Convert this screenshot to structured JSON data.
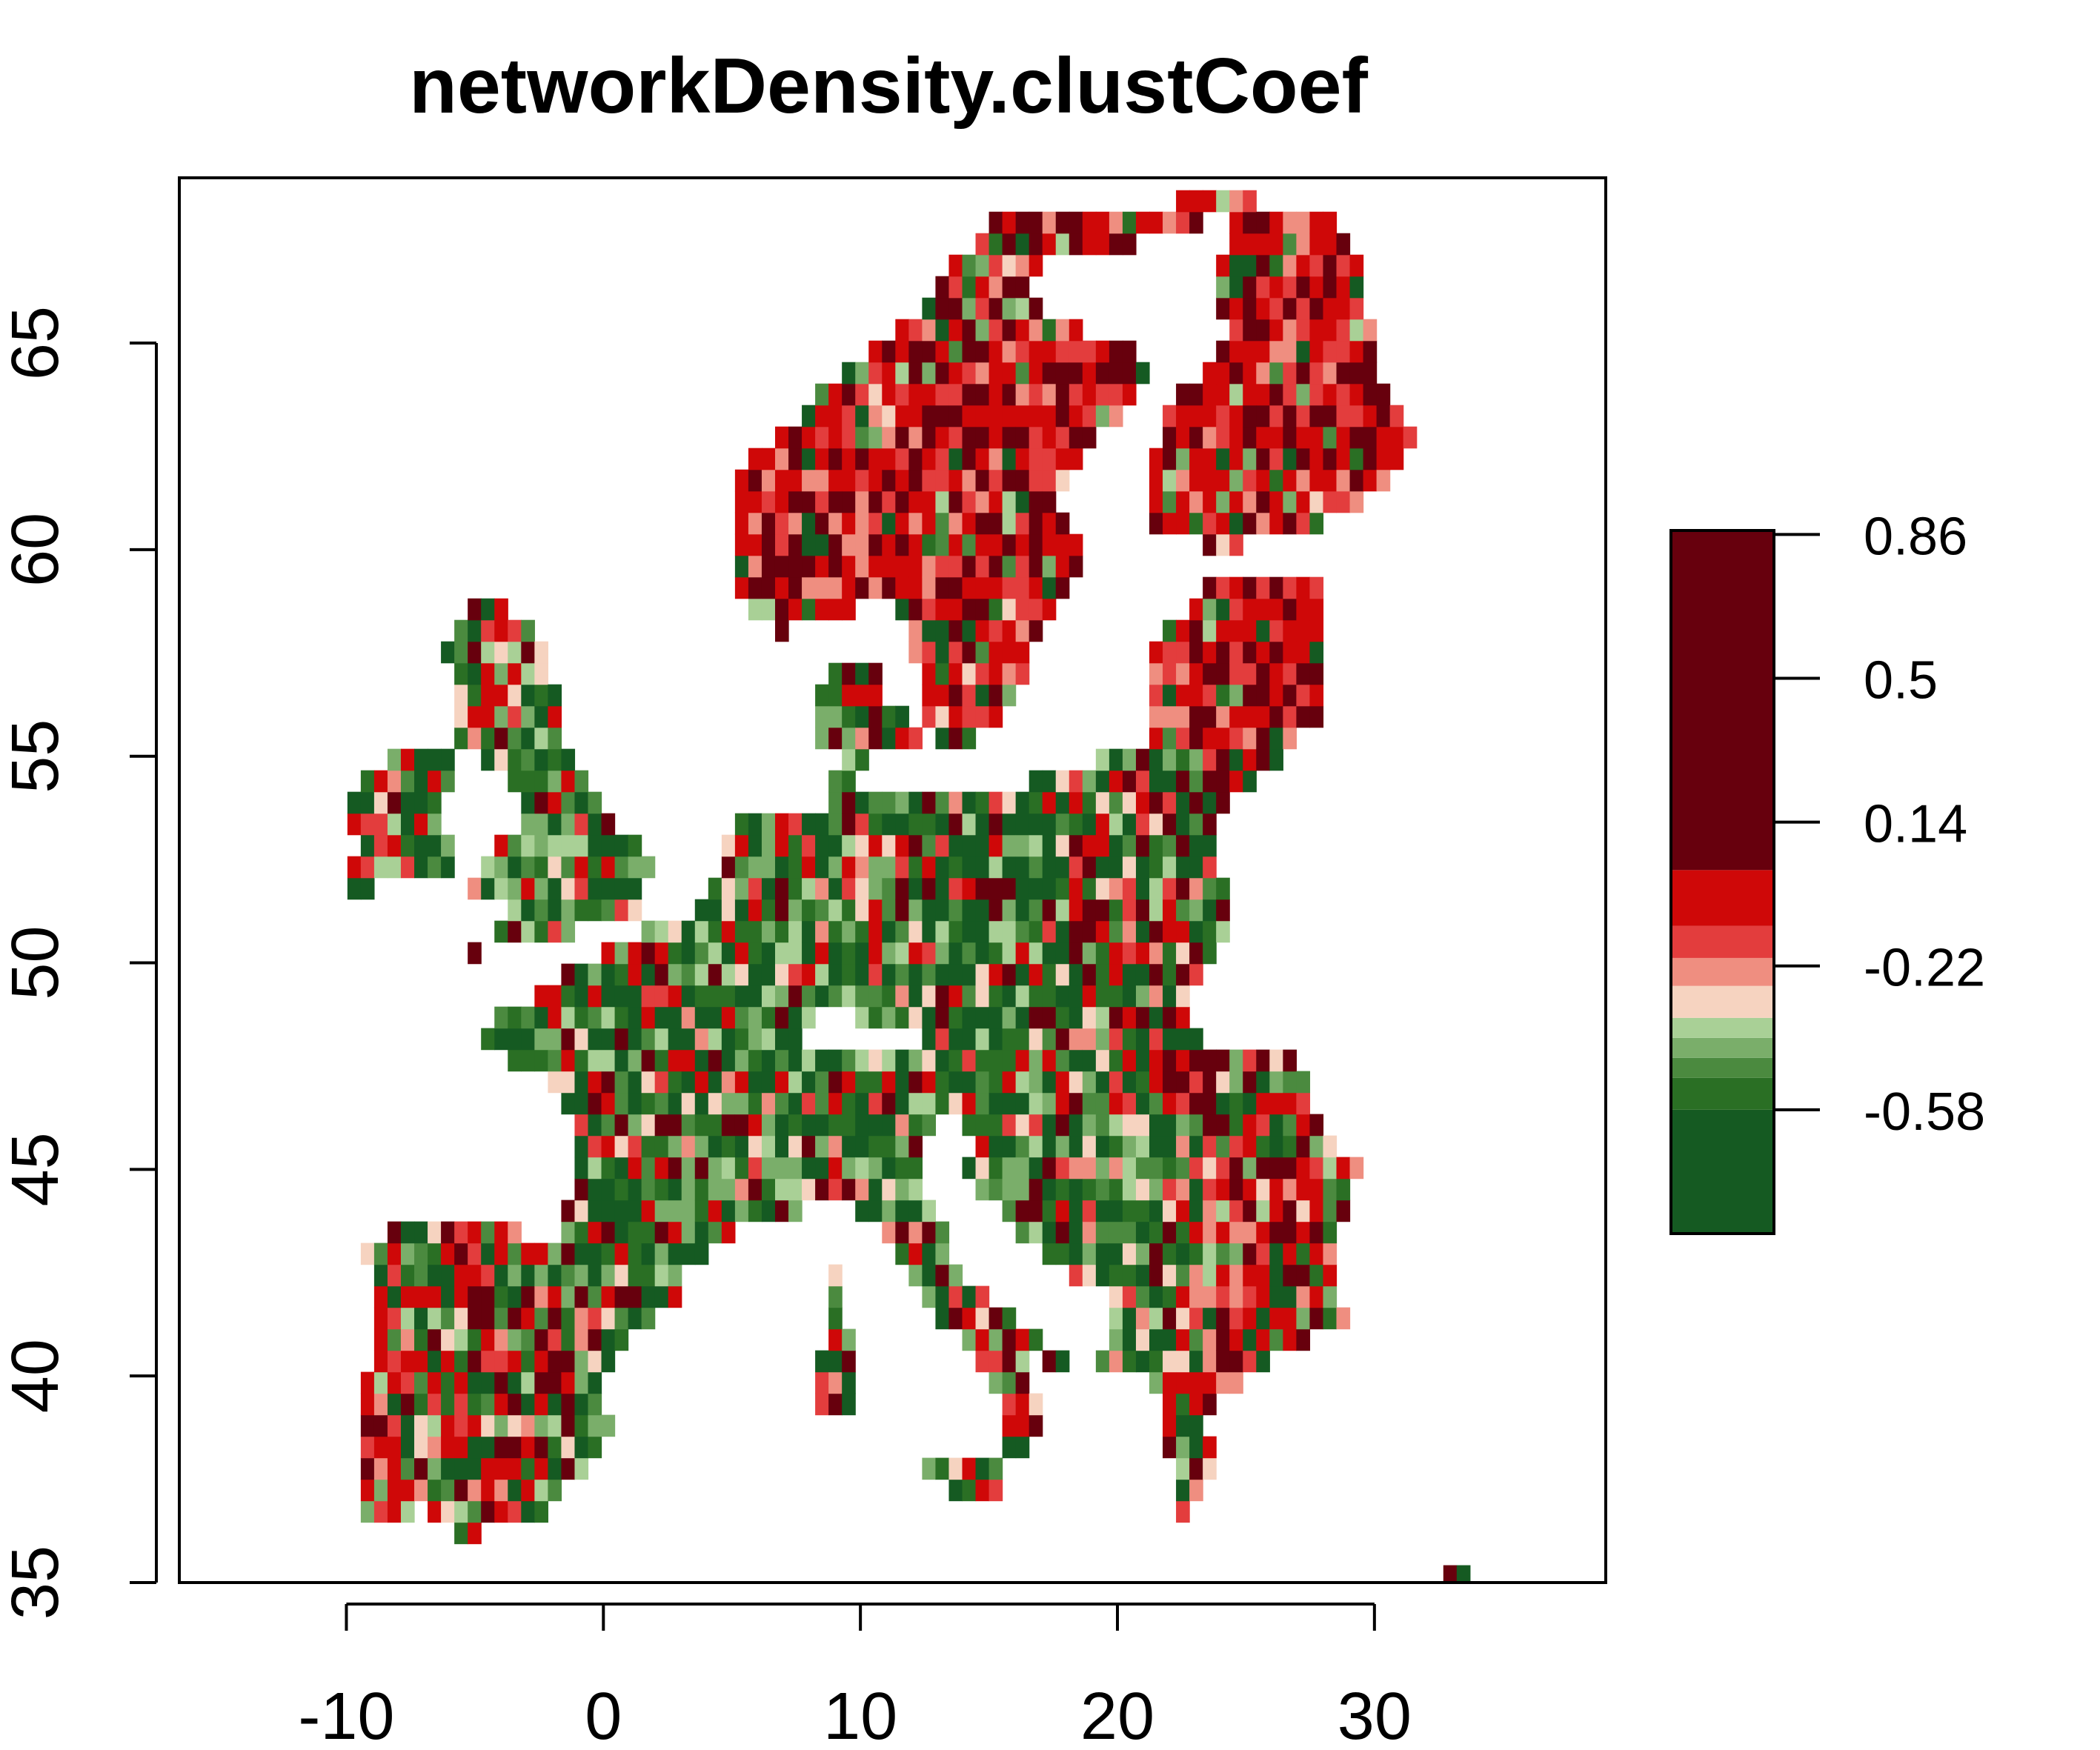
{
  "chart_data": {
    "type": "heatmap",
    "title": "networkDensity.clustCoef",
    "xlabel": "",
    "ylabel": "",
    "x_ticks": [
      -10,
      0,
      10,
      20,
      30
    ],
    "y_ticks": [
      35,
      40,
      45,
      50,
      55,
      60,
      65
    ],
    "xlim": [
      -16.5,
      39
    ],
    "ylim": [
      35,
      69
    ],
    "legend": {
      "placement": "right",
      "tick_labels": [
        "0.86",
        "0.5",
        "0.14",
        "-0.22",
        "-0.58"
      ],
      "tick_values": [
        0.86,
        0.5,
        0.14,
        -0.22,
        -0.58
      ],
      "range": [
        -0.89,
        0.87
      ],
      "bins": [
        {
          "from": -0.89,
          "to": -0.58,
          "color": "#155a22"
        },
        {
          "from": -0.58,
          "to": -0.5,
          "color": "#2a6f24"
        },
        {
          "from": -0.5,
          "to": -0.45,
          "color": "#4b8a3f"
        },
        {
          "from": -0.45,
          "to": -0.4,
          "color": "#7aae6a"
        },
        {
          "from": -0.4,
          "to": -0.35,
          "color": "#a9d096"
        },
        {
          "from": -0.35,
          "to": -0.27,
          "color": "#f6d3c0"
        },
        {
          "from": -0.27,
          "to": -0.2,
          "color": "#ef8e80"
        },
        {
          "from": -0.2,
          "to": -0.12,
          "color": "#e33d3d"
        },
        {
          "from": -0.12,
          "to": 0.02,
          "color": "#cf0808"
        },
        {
          "from": 0.02,
          "to": 0.87,
          "color": "#67000d"
        }
      ]
    },
    "grid": false
  }
}
